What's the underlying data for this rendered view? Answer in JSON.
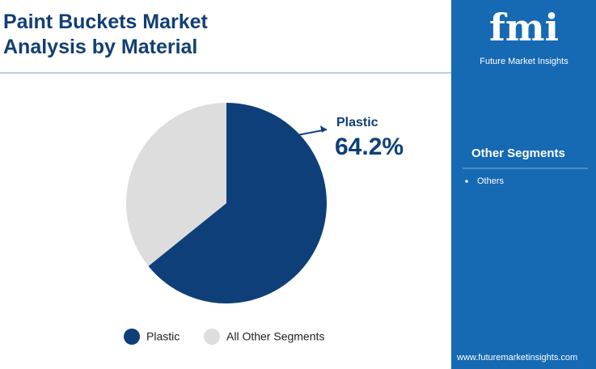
{
  "chart_data": {
    "type": "pie",
    "title": "Paint Buckets Market Analysis by Material",
    "categories": [
      "Plastic",
      "All Other Segments"
    ],
    "values": [
      64.2,
      35.8
    ],
    "value_labels": [
      "64.2%",
      null
    ],
    "colors": [
      "#0e3f79",
      "#dddddd"
    ]
  },
  "sidebar": {
    "logo": {
      "mark": "fmi",
      "name": "Future Market Insights"
    },
    "heading": "Other Segments",
    "items": [
      "Others"
    ],
    "website": "www.futuremarketinsights.com"
  }
}
